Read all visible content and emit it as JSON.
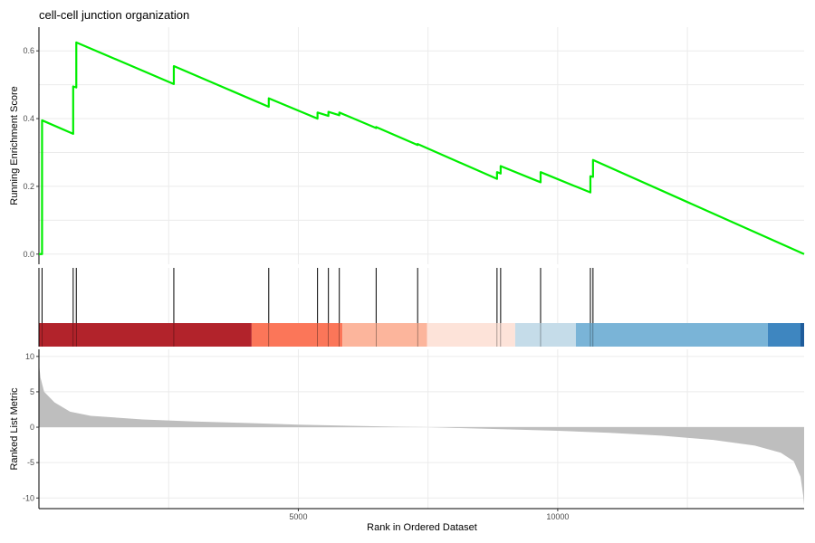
{
  "chart_data": {
    "type": "line",
    "title": "cell-cell junction organization",
    "xlabel": "Rank in Ordered Dataset",
    "xlim": [
      0,
      14750
    ],
    "x_ticks": [
      5000,
      10000
    ],
    "grid": true,
    "panels": {
      "enrichment": {
        "ylabel": "Running Enrichment Score",
        "ylim": [
          -0.03,
          0.67
        ],
        "y_ticks": [
          0.0,
          0.2,
          0.4,
          0.6
        ],
        "line_color": "#00EE00",
        "points": [
          [
            0,
            0.0
          ],
          [
            60,
            0.0
          ],
          [
            60,
            0.395
          ],
          [
            660,
            0.355
          ],
          [
            660,
            0.495
          ],
          [
            720,
            0.492
          ],
          [
            720,
            0.625
          ],
          [
            2600,
            0.502
          ],
          [
            2600,
            0.555
          ],
          [
            4430,
            0.435
          ],
          [
            4430,
            0.46
          ],
          [
            5370,
            0.4
          ],
          [
            5370,
            0.418
          ],
          [
            5580,
            0.408
          ],
          [
            5580,
            0.42
          ],
          [
            5790,
            0.41
          ],
          [
            5790,
            0.418
          ],
          [
            6500,
            0.372
          ],
          [
            6500,
            0.375
          ],
          [
            7300,
            0.322
          ],
          [
            7300,
            0.325
          ],
          [
            8830,
            0.222
          ],
          [
            8830,
            0.242
          ],
          [
            8900,
            0.238
          ],
          [
            8900,
            0.26
          ],
          [
            9670,
            0.212
          ],
          [
            9670,
            0.242
          ],
          [
            10630,
            0.182
          ],
          [
            10630,
            0.23
          ],
          [
            10680,
            0.228
          ],
          [
            10680,
            0.278
          ],
          [
            14750,
            0.0
          ]
        ]
      },
      "hits": {
        "positions": [
          60,
          660,
          720,
          2600,
          4430,
          5370,
          5580,
          5790,
          6500,
          7300,
          8830,
          8900,
          9670,
          10630,
          10680
        ],
        "band_colors": [
          {
            "from": 0,
            "to": 4100,
            "color": "#B2232B"
          },
          {
            "from": 4100,
            "to": 5850,
            "color": "#FB7659"
          },
          {
            "from": 5850,
            "to": 7480,
            "color": "#FCB59C"
          },
          {
            "from": 7480,
            "to": 9180,
            "color": "#FDE3D9"
          },
          {
            "from": 9180,
            "to": 10350,
            "color": "#C5DCE9"
          },
          {
            "from": 10350,
            "to": 14050,
            "color": "#7AB4D7"
          },
          {
            "from": 14050,
            "to": 14680,
            "color": "#3E86C0"
          },
          {
            "from": 14680,
            "to": 14750,
            "color": "#1F5C9B"
          }
        ]
      },
      "ranked": {
        "ylabel": "Ranked List Metric",
        "ylim": [
          -11.5,
          11.0
        ],
        "y_ticks": [
          -10,
          -5,
          0,
          5,
          10
        ],
        "fill_color": "#BEBEBE",
        "points": [
          [
            0,
            9.0
          ],
          [
            30,
            7.0
          ],
          [
            100,
            5.0
          ],
          [
            300,
            3.5
          ],
          [
            600,
            2.2
          ],
          [
            1000,
            1.6
          ],
          [
            2000,
            1.1
          ],
          [
            3000,
            0.8
          ],
          [
            4000,
            0.6
          ],
          [
            5000,
            0.35
          ],
          [
            6000,
            0.2
          ],
          [
            7000,
            0.05
          ],
          [
            7500,
            0.0
          ],
          [
            8000,
            -0.1
          ],
          [
            9000,
            -0.3
          ],
          [
            10000,
            -0.5
          ],
          [
            11000,
            -0.8
          ],
          [
            12000,
            -1.2
          ],
          [
            13000,
            -1.8
          ],
          [
            13800,
            -2.6
          ],
          [
            14300,
            -3.6
          ],
          [
            14550,
            -4.8
          ],
          [
            14680,
            -7.0
          ],
          [
            14730,
            -9.5
          ],
          [
            14750,
            -11.0
          ]
        ]
      }
    }
  }
}
